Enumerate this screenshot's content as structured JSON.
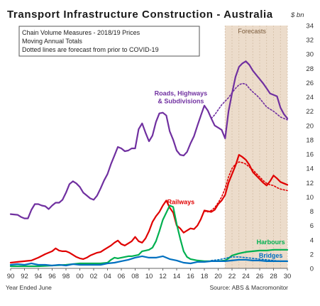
{
  "chart_data": {
    "type": "line",
    "title": "Transport Infrastructure Construction - Australia",
    "unit_label": "$ bn",
    "notes": [
      "Chain Volume Measures - 2018/19 Prices",
      "Moving Annual Totals",
      "Dotted lines are forecast from prior to COVID-19"
    ],
    "forecast_label": "Forecasts",
    "forecast_start": 2021.0,
    "x_axis_label": "Year Ended June",
    "source": "Source: ABS & Macromonitor",
    "xlim": [
      1990,
      2030
    ],
    "ylim": [
      0,
      34
    ],
    "x_ticks": [
      "90",
      "92",
      "94",
      "96",
      "98",
      "00",
      "02",
      "04",
      "06",
      "08",
      "10",
      "12",
      "14",
      "16",
      "18",
      "20",
      "22",
      "24",
      "26",
      "28",
      "30"
    ],
    "y_ticks": [
      "0",
      "2",
      "4",
      "6",
      "8",
      "10",
      "12",
      "14",
      "16",
      "18",
      "20",
      "22",
      "24",
      "26",
      "28",
      "30",
      "32",
      "34"
    ],
    "colors": {
      "roads": "#7030a0",
      "railways": "#e00000",
      "harbours": "#00b050",
      "bridges": "#0070c0",
      "forecast_band": "#ecdccb"
    },
    "series": [
      {
        "name": "Roads, Highways & Subdivisions",
        "key": "roads",
        "x": [
          1990,
          1991,
          1991.5,
          1992,
          1992.5,
          1993,
          1993.5,
          1994,
          1994.5,
          1995,
          1995.5,
          1996,
          1996.5,
          1997,
          1997.5,
          1998,
          1998.5,
          1999,
          1999.5,
          2000,
          2000.5,
          2001,
          2001.5,
          2002,
          2002.5,
          2003,
          2003.5,
          2004,
          2004.5,
          2005,
          2005.5,
          2006,
          2006.5,
          2007,
          2007.5,
          2008,
          2008.5,
          2009,
          2009.5,
          2010,
          2010.5,
          2011,
          2011.5,
          2012,
          2012.5,
          2013,
          2013.5,
          2014,
          2014.5,
          2015,
          2015.5,
          2016,
          2016.5,
          2017,
          2017.5,
          2018,
          2018.5,
          2019,
          2019.5,
          2020,
          2020.5,
          2021,
          2021.5,
          2022,
          2022.5,
          2023,
          2023.5,
          2024,
          2024.5,
          2025,
          2025.5,
          2026,
          2026.5,
          2027,
          2027.5,
          2028,
          2028.5,
          2029,
          2029.5,
          2030
        ],
        "values": [
          7.6,
          7.5,
          7.2,
          7.0,
          7.0,
          8.2,
          9.0,
          9.0,
          8.8,
          8.7,
          8.3,
          8.8,
          9.2,
          9.2,
          9.6,
          10.6,
          11.8,
          12.2,
          11.9,
          11.4,
          10.6,
          10.2,
          9.8,
          9.6,
          10.2,
          11.2,
          12.3,
          13.2,
          14.6,
          15.8,
          17.0,
          16.8,
          16.4,
          16.5,
          16.8,
          16.8,
          19.5,
          20.3,
          19.0,
          17.8,
          18.6,
          20.5,
          21.7,
          21.8,
          21.4,
          19.2,
          18.0,
          16.5,
          15.9,
          15.8,
          16.3,
          17.5,
          18.5,
          20.0,
          21.4,
          22.8,
          22.1,
          21.0,
          20.0,
          19.7,
          19.4,
          18.2,
          22.0,
          24.5,
          26.8,
          28.2,
          28.7,
          29.0,
          28.5,
          27.7,
          27.1,
          26.5,
          25.9,
          25.2,
          24.5,
          24.3,
          24.1,
          22.5,
          21.6,
          21.0
        ]
      },
      {
        "name": "Roads forecast (pre-COVID)",
        "key": "roads",
        "dashed": true,
        "x": [
          2019,
          2019.5,
          2020,
          2020.5,
          2021,
          2021.5,
          2022,
          2022.5,
          2023,
          2023.5,
          2024,
          2024.5,
          2025,
          2025.5,
          2026,
          2026.5,
          2027,
          2027.5,
          2028,
          2028.5,
          2029,
          2029.5,
          2030
        ],
        "values": [
          21.0,
          21.5,
          22.2,
          22.9,
          23.4,
          23.9,
          24.6,
          25.2,
          25.7,
          25.9,
          25.8,
          25.2,
          24.7,
          24.3,
          23.8,
          23.2,
          22.6,
          22.3,
          22.0,
          21.6,
          21.2,
          21.0,
          20.8
        ]
      },
      {
        "name": "Railways",
        "key": "railways",
        "x": [
          1990,
          1991,
          1992,
          1993,
          1994,
          1995,
          1995.5,
          1996,
          1996.5,
          1997,
          1997.5,
          1998,
          1998.5,
          1999,
          1999.5,
          2000,
          2000.5,
          2001,
          2001.5,
          2002,
          2002.5,
          2003,
          2003.5,
          2004,
          2004.5,
          2005,
          2005.5,
          2006,
          2006.5,
          2007,
          2007.5,
          2008,
          2008.5,
          2009,
          2009.5,
          2010,
          2010.5,
          2011,
          2011.5,
          2012,
          2012.5,
          2013,
          2013.5,
          2014,
          2014.5,
          2015,
          2015.5,
          2016,
          2016.5,
          2017,
          2017.5,
          2018,
          2018.5,
          2019,
          2019.5,
          2020,
          2020.5,
          2021,
          2021.5,
          2022,
          2022.5,
          2023,
          2023.5,
          2024,
          2024.5,
          2025,
          2025.5,
          2026,
          2026.5,
          2027,
          2027.5,
          2028,
          2028.5,
          2029,
          2029.5,
          2030
        ],
        "values": [
          0.8,
          0.9,
          1.0,
          1.1,
          1.5,
          2.0,
          2.2,
          2.4,
          2.8,
          2.5,
          2.4,
          2.4,
          2.2,
          1.9,
          1.6,
          1.4,
          1.3,
          1.5,
          1.8,
          2.0,
          2.2,
          2.3,
          2.6,
          2.9,
          3.2,
          3.6,
          3.9,
          3.4,
          3.2,
          3.5,
          3.8,
          4.4,
          3.8,
          3.6,
          4.2,
          5.2,
          6.5,
          7.3,
          7.9,
          8.8,
          9.5,
          8.5,
          7.8,
          6.0,
          5.6,
          5.0,
          5.3,
          5.6,
          5.5,
          6.0,
          6.9,
          8.1,
          8.0,
          7.9,
          8.2,
          9.0,
          9.5,
          10.3,
          12.0,
          13.2,
          14.4,
          15.9,
          15.6,
          15.2,
          14.5,
          13.5,
          13.0,
          12.5,
          12.0,
          11.6,
          12.2,
          13.0,
          12.6,
          12.1,
          11.9,
          11.7
        ]
      },
      {
        "name": "Railways forecast (pre-COVID)",
        "key": "railways",
        "dashed": true,
        "x": [
          2018,
          2018.5,
          2019,
          2019.5,
          2020,
          2020.5,
          2021,
          2021.5,
          2022,
          2022.5,
          2023,
          2023.5,
          2024,
          2024.5,
          2025,
          2025.5,
          2026,
          2026.5,
          2027,
          2027.5,
          2028,
          2028.5,
          2029,
          2029.5,
          2030
        ],
        "values": [
          8.0,
          7.9,
          8.1,
          8.5,
          9.2,
          10.0,
          11.2,
          12.8,
          14.0,
          14.6,
          14.9,
          14.8,
          14.6,
          14.2,
          13.8,
          13.3,
          12.8,
          12.3,
          11.9,
          11.7,
          11.6,
          11.3,
          11.1,
          11.0,
          10.9
        ]
      },
      {
        "name": "Harbours",
        "key": "harbours",
        "x": [
          1990,
          1992,
          1994,
          1996,
          1998,
          1999,
          2000,
          2001,
          2002,
          2003,
          2004,
          2004.5,
          2005,
          2005.5,
          2006,
          2006.5,
          2007,
          2007.5,
          2008,
          2008.5,
          2009,
          2009.5,
          2010,
          2010.5,
          2011,
          2011.5,
          2012,
          2012.5,
          2013,
          2013.5,
          2014,
          2014.5,
          2015,
          2015.5,
          2016,
          2017,
          2018,
          2019,
          2020,
          2021,
          2021.5,
          2022,
          2023,
          2024,
          2025,
          2026,
          2027,
          2028,
          2029,
          2030
        ],
        "values": [
          0.3,
          0.3,
          0.3,
          0.4,
          0.5,
          0.6,
          0.7,
          0.7,
          0.7,
          0.7,
          0.8,
          1.2,
          1.5,
          1.4,
          1.5,
          1.6,
          1.7,
          1.7,
          1.8,
          1.9,
          2.4,
          2.5,
          2.6,
          2.9,
          3.8,
          5.2,
          6.8,
          7.8,
          8.8,
          8.6,
          6.2,
          4.2,
          2.4,
          1.6,
          1.3,
          1.1,
          1.0,
          1.0,
          1.0,
          1.1,
          1.4,
          1.8,
          2.1,
          2.3,
          2.4,
          2.5,
          2.5,
          2.6,
          2.6,
          2.6
        ]
      },
      {
        "name": "Bridges",
        "key": "bridges",
        "x": [
          1990,
          1991,
          1992,
          1993,
          1994,
          1995,
          1996,
          1997,
          1998,
          1999,
          2000,
          2001,
          2002,
          2003,
          2004,
          2005,
          2006,
          2007,
          2008,
          2009,
          2010,
          2011,
          2012,
          2013,
          2014,
          2015,
          2016,
          2017,
          2018,
          2019,
          2020,
          2021,
          2022,
          2023,
          2024,
          2025,
          2026,
          2027,
          2028,
          2029,
          2030
        ],
        "values": [
          0.5,
          0.6,
          0.5,
          0.7,
          0.5,
          0.5,
          0.4,
          0.5,
          0.4,
          0.6,
          0.5,
          0.5,
          0.5,
          0.5,
          0.7,
          0.8,
          1.0,
          1.2,
          1.5,
          1.7,
          1.5,
          1.5,
          1.7,
          1.3,
          1.1,
          0.8,
          0.7,
          0.9,
          0.9,
          1.0,
          1.0,
          1.0,
          1.1,
          1.2,
          1.2,
          1.1,
          1.1,
          1.0,
          1.0,
          1.0,
          1.0
        ]
      },
      {
        "name": "Bridges forecast (pre-COVID)",
        "key": "bridges",
        "dashed": true,
        "x": [
          2019,
          2020,
          2021,
          2022,
          2023,
          2024,
          2025,
          2026,
          2027,
          2028,
          2029,
          2030
        ],
        "values": [
          1.1,
          1.2,
          1.4,
          1.6,
          1.6,
          1.5,
          1.4,
          1.3,
          1.2,
          1.1,
          1.0,
          1.0
        ]
      }
    ],
    "labels": [
      {
        "key": "roads",
        "lines": [
          "Roads, Highways",
          "& Subdivisions"
        ],
        "x": 2014.6,
        "y": 24.2
      },
      {
        "key": "railways",
        "lines": [
          "Railways"
        ],
        "x": 2014.6,
        "y": 9.0
      },
      {
        "key": "harbours",
        "lines": [
          "Harbours"
        ],
        "x": 2027.6,
        "y": 3.4
      },
      {
        "key": "bridges",
        "lines": [
          "Bridges"
        ],
        "x": 2027.6,
        "y": 1.5
      }
    ]
  }
}
